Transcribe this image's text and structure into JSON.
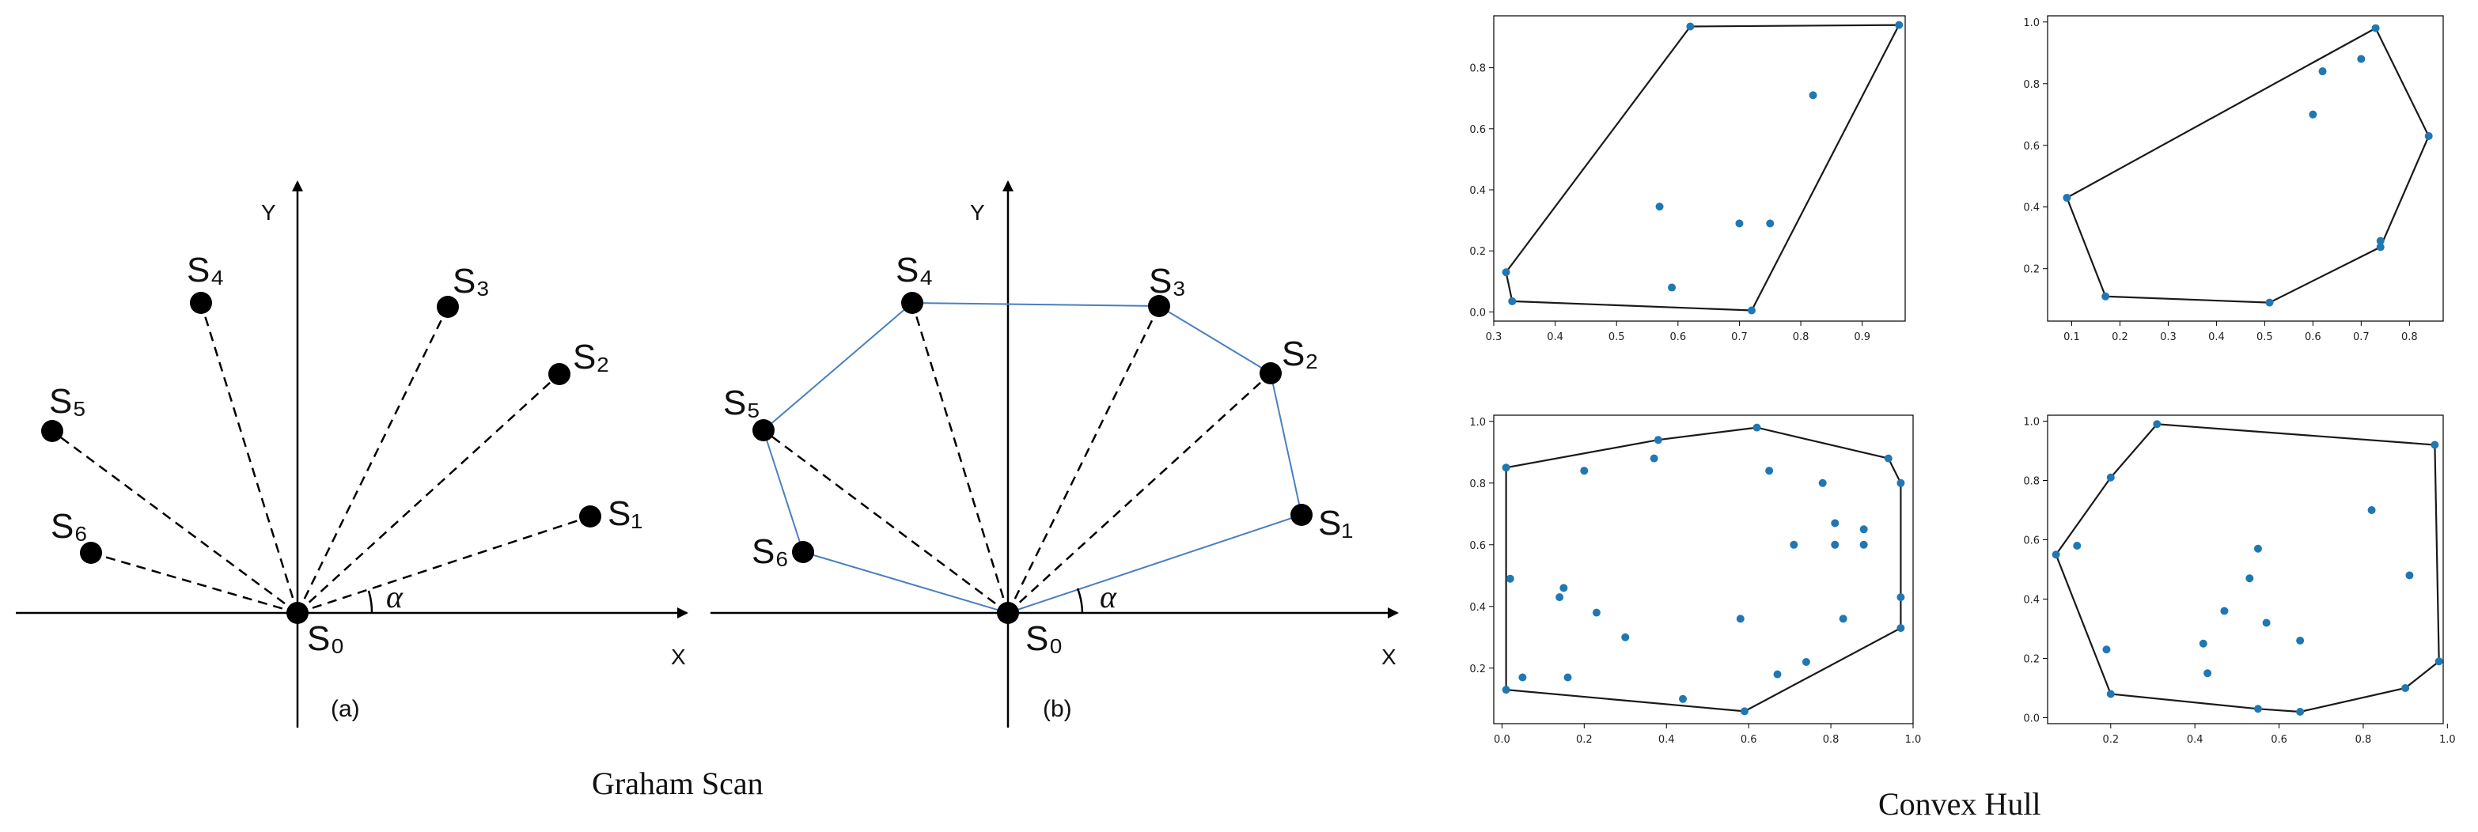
{
  "graham": {
    "caption": "Graham Scan",
    "axis_x": "X",
    "axis_y": "Y",
    "angle": "α",
    "origin_label": "S₀",
    "points": [
      {
        "label": "S₁"
      },
      {
        "label": "S₂"
      },
      {
        "label": "S₃"
      },
      {
        "label": "S₄"
      },
      {
        "label": "S₅"
      },
      {
        "label": "S₆"
      }
    ],
    "panel_a_label": "(a)",
    "panel_b_label": "(b)",
    "colors": {
      "hull": "#4a7fc0",
      "ink": "#000000"
    }
  },
  "hull_caption": "Convex Hull",
  "chart_data": [
    {
      "type": "scatter",
      "xlim": [
        0.3,
        0.97
      ],
      "ylim": [
        -0.03,
        0.97
      ],
      "xticks": [
        "0.3",
        "0.4",
        "0.5",
        "0.6",
        "0.7",
        "0.8",
        "0.9"
      ],
      "yticks": [
        "0.0",
        "0.2",
        "0.4",
        "0.6",
        "0.8"
      ],
      "xtickv": [
        0.3,
        0.4,
        0.5,
        0.6,
        0.7,
        0.8,
        0.9
      ],
      "ytickv": [
        0.0,
        0.2,
        0.4,
        0.6,
        0.8
      ],
      "points": [
        [
          0.32,
          0.13
        ],
        [
          0.33,
          0.035
        ],
        [
          0.72,
          0.005
        ],
        [
          0.96,
          0.94
        ],
        [
          0.62,
          0.935
        ],
        [
          0.82,
          0.71
        ],
        [
          0.57,
          0.345
        ],
        [
          0.7,
          0.29
        ],
        [
          0.75,
          0.29
        ],
        [
          0.59,
          0.08
        ]
      ],
      "hull": [
        [
          0.32,
          0.13
        ],
        [
          0.62,
          0.935
        ],
        [
          0.96,
          0.94
        ],
        [
          0.72,
          0.005
        ],
        [
          0.33,
          0.035
        ]
      ]
    },
    {
      "type": "scatter",
      "xlim": [
        0.05,
        0.87
      ],
      "ylim": [
        0.03,
        1.02
      ],
      "xticks": [
        "0.1",
        "0.2",
        "0.3",
        "0.4",
        "0.5",
        "0.6",
        "0.7",
        "0.8"
      ],
      "yticks": [
        "0.2",
        "0.4",
        "0.6",
        "0.8",
        "1.0"
      ],
      "xtickv": [
        0.1,
        0.2,
        0.3,
        0.4,
        0.5,
        0.6,
        0.7,
        0.8
      ],
      "ytickv": [
        0.2,
        0.4,
        0.6,
        0.8,
        1.0
      ],
      "points": [
        [
          0.09,
          0.43
        ],
        [
          0.17,
          0.11
        ],
        [
          0.51,
          0.09
        ],
        [
          0.74,
          0.27
        ],
        [
          0.74,
          0.29
        ],
        [
          0.84,
          0.63
        ],
        [
          0.73,
          0.98
        ],
        [
          0.7,
          0.88
        ],
        [
          0.62,
          0.84
        ],
        [
          0.6,
          0.7
        ]
      ],
      "hull": [
        [
          0.09,
          0.43
        ],
        [
          0.73,
          0.98
        ],
        [
          0.84,
          0.63
        ],
        [
          0.74,
          0.27
        ],
        [
          0.51,
          0.09
        ],
        [
          0.17,
          0.11
        ]
      ]
    },
    {
      "type": "scatter",
      "xlim": [
        -0.02,
        1.0
      ],
      "ylim": [
        0.02,
        1.02
      ],
      "xticks": [
        "0.0",
        "0.2",
        "0.4",
        "0.6",
        "0.8",
        "1.0"
      ],
      "yticks": [
        "0.2",
        "0.4",
        "0.6",
        "0.8",
        "1.0"
      ],
      "xtickv": [
        0.0,
        0.2,
        0.4,
        0.6,
        0.8,
        1.0
      ],
      "ytickv": [
        0.2,
        0.4,
        0.6,
        0.8,
        1.0
      ],
      "points": [
        [
          0.01,
          0.85
        ],
        [
          0.38,
          0.94
        ],
        [
          0.62,
          0.98
        ],
        [
          0.94,
          0.88
        ],
        [
          0.97,
          0.8
        ],
        [
          0.97,
          0.43
        ],
        [
          0.97,
          0.33
        ],
        [
          0.59,
          0.06
        ],
        [
          0.01,
          0.13
        ],
        [
          0.02,
          0.49
        ],
        [
          0.05,
          0.17
        ],
        [
          0.14,
          0.43
        ],
        [
          0.15,
          0.46
        ],
        [
          0.16,
          0.17
        ],
        [
          0.2,
          0.84
        ],
        [
          0.23,
          0.38
        ],
        [
          0.3,
          0.3
        ],
        [
          0.37,
          0.88
        ],
        [
          0.44,
          0.1
        ],
        [
          0.58,
          0.36
        ],
        [
          0.65,
          0.84
        ],
        [
          0.67,
          0.18
        ],
        [
          0.71,
          0.6
        ],
        [
          0.74,
          0.22
        ],
        [
          0.78,
          0.8
        ],
        [
          0.81,
          0.67
        ],
        [
          0.81,
          0.6
        ],
        [
          0.83,
          0.36
        ],
        [
          0.88,
          0.65
        ],
        [
          0.88,
          0.6
        ]
      ],
      "hull": [
        [
          0.01,
          0.85
        ],
        [
          0.38,
          0.94
        ],
        [
          0.62,
          0.98
        ],
        [
          0.94,
          0.88
        ],
        [
          0.97,
          0.8
        ],
        [
          0.97,
          0.43
        ],
        [
          0.97,
          0.33
        ],
        [
          0.59,
          0.06
        ],
        [
          0.01,
          0.13
        ]
      ]
    },
    {
      "type": "scatter",
      "xlim": [
        0.05,
        0.99
      ],
      "ylim": [
        -0.02,
        1.02
      ],
      "xticks": [
        "0.2",
        "0.4",
        "0.6",
        "0.8",
        "1.0"
      ],
      "yticks": [
        "0.0",
        "0.2",
        "0.4",
        "0.6",
        "0.8",
        "1.0"
      ],
      "xtickv": [
        0.2,
        0.4,
        0.6,
        0.8,
        1.0
      ],
      "ytickv": [
        0.0,
        0.2,
        0.4,
        0.6,
        0.8,
        1.0
      ],
      "points": [
        [
          0.07,
          0.55
        ],
        [
          0.12,
          0.58
        ],
        [
          0.19,
          0.23
        ],
        [
          0.2,
          0.08
        ],
        [
          0.2,
          0.81
        ],
        [
          0.31,
          0.99
        ],
        [
          0.97,
          0.92
        ],
        [
          0.98,
          0.19
        ],
        [
          0.9,
          0.1
        ],
        [
          0.65,
          0.02
        ],
        [
          0.55,
          0.03
        ],
        [
          0.42,
          0.25
        ],
        [
          0.43,
          0.15
        ],
        [
          0.47,
          0.36
        ],
        [
          0.53,
          0.47
        ],
        [
          0.55,
          0.57
        ],
        [
          0.57,
          0.32
        ],
        [
          0.65,
          0.26
        ],
        [
          0.82,
          0.7
        ],
        [
          0.91,
          0.48
        ]
      ],
      "hull": [
        [
          0.07,
          0.55
        ],
        [
          0.2,
          0.81
        ],
        [
          0.31,
          0.99
        ],
        [
          0.97,
          0.92
        ],
        [
          0.98,
          0.19
        ],
        [
          0.9,
          0.1
        ],
        [
          0.65,
          0.02
        ],
        [
          0.55,
          0.03
        ],
        [
          0.2,
          0.08
        ]
      ]
    }
  ]
}
